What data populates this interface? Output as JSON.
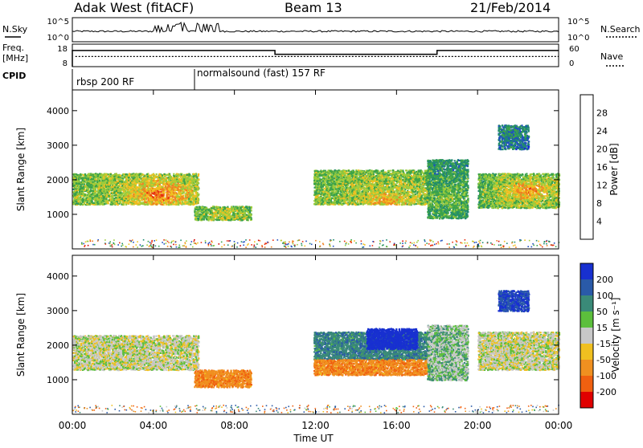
{
  "header": {
    "station": "Adak West (fitACF)",
    "beam": "Beam 13",
    "date": "21/Feb/2014"
  },
  "noise_panel": {
    "left_label": "N.Sky",
    "right_label": "N.Search",
    "left_ticks": [
      "10^5",
      "10^0"
    ],
    "right_ticks": [
      "10^5",
      "10^0"
    ]
  },
  "freq_panel": {
    "left_label_1": "Freq.",
    "left_label_2": "[MHz]",
    "right_label": "Nave",
    "left_ticks": [
      "18",
      "8"
    ],
    "right_ticks": [
      "60",
      "0"
    ],
    "freq_steps": [
      {
        "start_h": 0.0,
        "end_h": 10.0,
        "level": 0.72
      },
      {
        "start_h": 10.0,
        "end_h": 18.0,
        "level": 0.55
      },
      {
        "start_h": 18.0,
        "end_h": 24.0,
        "level": 0.72
      }
    ],
    "nave_level": 0.45
  },
  "cpid": {
    "label": "CPID",
    "modes": [
      {
        "name": "rbsp 200 RF",
        "start_h": 0.0
      },
      {
        "name": "normalsound (fast) 157 RF",
        "start_h": 6.0
      }
    ]
  },
  "x_axis": {
    "label": "Time UT",
    "ticks": [
      "00:00",
      "04:00",
      "08:00",
      "12:00",
      "16:00",
      "20:00",
      "00:00"
    ],
    "range_h": [
      0,
      24
    ]
  },
  "power_panel": {
    "ylabel": "Slant Range [km]",
    "yticks": [
      1000,
      2000,
      3000,
      4000
    ],
    "ylim": [
      0,
      4600
    ],
    "colorbar_label": "Power [dB]",
    "colorbar_ticks": [
      "4",
      "8",
      "12",
      "16",
      "20",
      "24",
      "28"
    ],
    "colorbar_colors": [
      "#1020e0",
      "#2050c0",
      "#208a70",
      "#3ca34a",
      "#9ccc3c",
      "#f0c020",
      "#f08020",
      "#e83010",
      "#d00000"
    ]
  },
  "velocity_panel": {
    "ylabel": "Slant Range [km]",
    "yticks": [
      1000,
      2000,
      3000,
      4000
    ],
    "ylim": [
      0,
      4600
    ],
    "colorbar_label": "Velocity [m s⁻¹]",
    "colorbar_ticks": [
      "200",
      "100",
      "50",
      "15",
      "-15",
      "-50",
      "-100",
      "-200"
    ],
    "colorbar_colors": [
      "#1830d0",
      "#2a5aa8",
      "#3a8a78",
      "#5cbf3c",
      "#c8c8c8",
      "#f0c020",
      "#f09020",
      "#f06010",
      "#e00000"
    ]
  },
  "chart_data": {
    "type": "heatmap",
    "x": "time (h UT)",
    "y": "slant range (km)",
    "power_regions": [
      {
        "t0": 0.0,
        "t1": 6.2,
        "r0": 1300,
        "r1": 2200,
        "mean_dB": 14,
        "peak_dB": 26,
        "peak_at": [
          4.3,
          1600
        ]
      },
      {
        "t0": 6.0,
        "t1": 8.8,
        "r0": 850,
        "r1": 1250,
        "mean_dB": 12,
        "peak_dB": 18,
        "peak_at": [
          7.5,
          1000
        ]
      },
      {
        "t0": 11.9,
        "t1": 17.6,
        "r0": 1300,
        "r1": 2300,
        "mean_dB": 14,
        "peak_dB": 22,
        "peak_at": [
          15.5,
          1400
        ]
      },
      {
        "t0": 17.5,
        "t1": 19.5,
        "r0": 900,
        "r1": 2600,
        "mean_dB": 10,
        "peak_dB": 16,
        "peak_at": [
          18.5,
          1500
        ]
      },
      {
        "t0": 20.0,
        "t1": 24.0,
        "r0": 1200,
        "r1": 2200,
        "mean_dB": 12,
        "peak_dB": 24,
        "peak_at": [
          22.5,
          1700
        ]
      },
      {
        "t0": 21.0,
        "t1": 22.5,
        "r0": 2900,
        "r1": 3600,
        "mean_dB": 6,
        "peak_dB": 10,
        "peak_at": [
          21.5,
          3400
        ]
      }
    ],
    "velocity_regions": [
      {
        "t0": 0.0,
        "t1": 6.2,
        "r0": 1300,
        "r1": 2300,
        "mean_ms": 0
      },
      {
        "t0": 6.0,
        "t1": 8.8,
        "r0": 800,
        "r1": 1300,
        "mean_ms": -60
      },
      {
        "t0": 11.9,
        "t1": 17.6,
        "r0": 1600,
        "r1": 2400,
        "mean_ms": 60
      },
      {
        "t0": 14.5,
        "t1": 17.0,
        "r0": 1900,
        "r1": 2500,
        "mean_ms": 180
      },
      {
        "t0": 11.9,
        "t1": 17.6,
        "r0": 1150,
        "r1": 1600,
        "mean_ms": -60
      },
      {
        "t0": 17.5,
        "t1": 19.5,
        "r0": 1000,
        "r1": 2600,
        "mean_ms": 20
      },
      {
        "t0": 20.0,
        "t1": 24.0,
        "r0": 1300,
        "r1": 2400,
        "mean_ms": 0
      },
      {
        "t0": 21.0,
        "t1": 22.5,
        "r0": 3000,
        "r1": 3600,
        "mean_ms": 150
      }
    ]
  }
}
